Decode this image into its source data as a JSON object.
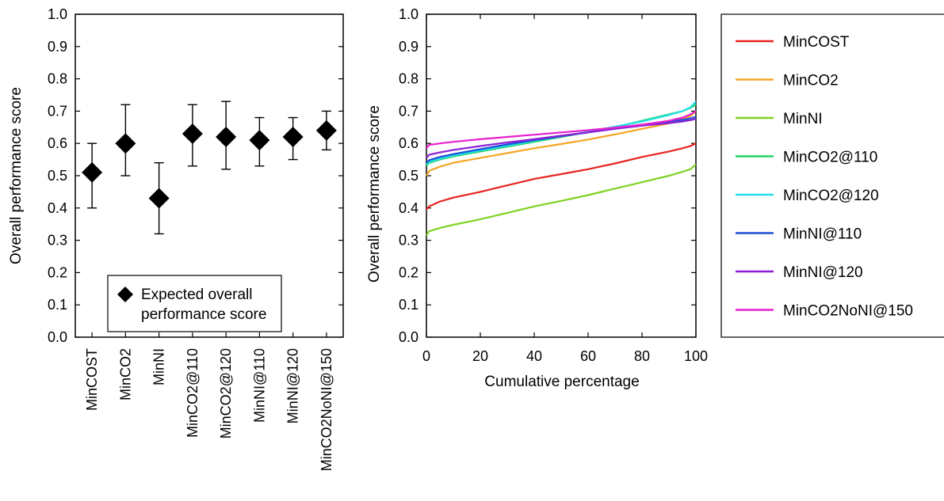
{
  "chart_data": [
    {
      "type": "scatter",
      "ylabel": "Overall performance score",
      "xlabel": "",
      "ylim": [
        0,
        1
      ],
      "yticks": [
        "0.0",
        "0.1",
        "0.2",
        "0.3",
        "0.4",
        "0.5",
        "0.6",
        "0.7",
        "0.8",
        "0.9",
        "1.0"
      ],
      "categories": [
        "MinCOST",
        "MinCO2",
        "MinNI",
        "MinCO2@110",
        "MinCO2@120",
        "MinNI@110",
        "MinNI@120",
        "MinCO2NoNI@150"
      ],
      "values": [
        0.51,
        0.6,
        0.43,
        0.63,
        0.62,
        0.61,
        0.62,
        0.64
      ],
      "error_low": [
        0.4,
        0.5,
        0.32,
        0.53,
        0.52,
        0.53,
        0.55,
        0.58
      ],
      "error_high": [
        0.6,
        0.72,
        0.54,
        0.72,
        0.73,
        0.68,
        0.68,
        0.7
      ],
      "legend": {
        "label": "Expected overall performance score",
        "label_lines": [
          "Expected overall",
          "performance score"
        ],
        "placement": "bottom-center"
      },
      "grid": false
    },
    {
      "type": "line",
      "xlabel": "Cumulative percentage",
      "ylabel": "Overall performance score",
      "xlim": [
        0,
        100
      ],
      "ylim": [
        0,
        1
      ],
      "xticks": [
        "0",
        "20",
        "40",
        "60",
        "80",
        "100"
      ],
      "yticks": [
        "0.0",
        "0.1",
        "0.2",
        "0.3",
        "0.4",
        "0.5",
        "0.6",
        "0.7",
        "0.8",
        "0.9",
        "1.0"
      ],
      "x": [
        0,
        1,
        5,
        10,
        20,
        30,
        40,
        50,
        60,
        70,
        80,
        90,
        95,
        98,
        100
      ],
      "series": [
        {
          "name": "MinCOST",
          "color": "#e8231f",
          "values": [
            0.395,
            0.405,
            0.42,
            0.432,
            0.45,
            0.47,
            0.49,
            0.505,
            0.52,
            0.538,
            0.558,
            0.575,
            0.585,
            0.592,
            0.6
          ]
        },
        {
          "name": "MinCO2",
          "color": "#f5a623",
          "values": [
            0.5,
            0.515,
            0.528,
            0.54,
            0.555,
            0.57,
            0.585,
            0.598,
            0.612,
            0.628,
            0.645,
            0.662,
            0.675,
            0.685,
            0.7
          ]
        },
        {
          "name": "MinNI",
          "color": "#7ed321",
          "values": [
            0.315,
            0.328,
            0.338,
            0.348,
            0.365,
            0.385,
            0.405,
            0.422,
            0.44,
            0.46,
            0.48,
            0.5,
            0.512,
            0.52,
            0.535
          ]
        },
        {
          "name": "MinCO2@110",
          "color": "#21d464",
          "values": [
            0.53,
            0.54,
            0.55,
            0.56,
            0.575,
            0.59,
            0.605,
            0.62,
            0.635,
            0.65,
            0.67,
            0.69,
            0.7,
            0.71,
            0.72
          ]
        },
        {
          "name": "MinCO2@120",
          "color": "#22e0e8",
          "values": [
            0.535,
            0.543,
            0.553,
            0.563,
            0.578,
            0.593,
            0.608,
            0.622,
            0.636,
            0.652,
            0.668,
            0.688,
            0.7,
            0.712,
            0.73
          ]
        },
        {
          "name": "MinNI@110",
          "color": "#1f4fd6",
          "values": [
            0.54,
            0.548,
            0.558,
            0.567,
            0.582,
            0.597,
            0.61,
            0.622,
            0.634,
            0.646,
            0.658,
            0.668,
            0.673,
            0.678,
            0.682
          ]
        },
        {
          "name": "MinNI@120",
          "color": "#8b1fd6",
          "values": [
            0.555,
            0.565,
            0.572,
            0.58,
            0.592,
            0.603,
            0.613,
            0.624,
            0.634,
            0.645,
            0.655,
            0.663,
            0.668,
            0.672,
            0.676
          ]
        },
        {
          "name": "MinCO2NoNI@150",
          "color": "#e81fd0",
          "values": [
            0.585,
            0.595,
            0.6,
            0.605,
            0.613,
            0.62,
            0.627,
            0.634,
            0.641,
            0.649,
            0.658,
            0.67,
            0.68,
            0.69,
            0.7
          ]
        }
      ],
      "legend": {
        "placement": "right"
      },
      "grid": false
    }
  ]
}
